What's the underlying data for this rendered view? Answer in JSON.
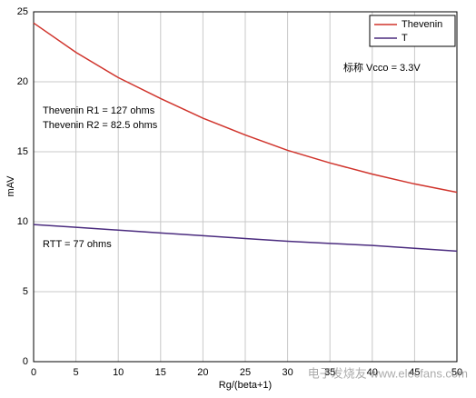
{
  "chart_data": {
    "type": "line",
    "x_label": "Rg/(beta+1)",
    "y_label": "mAV",
    "x": [
      0,
      5,
      10,
      15,
      20,
      25,
      30,
      35,
      40,
      45,
      50
    ],
    "series": [
      {
        "name": "Thevenin",
        "color": "#d0342c",
        "values": [
          24.2,
          22.1,
          20.3,
          18.8,
          17.4,
          16.2,
          15.1,
          14.2,
          13.4,
          12.7,
          12.1
        ]
      },
      {
        "name": "T",
        "color": "#4b2c7f",
        "values": [
          9.8,
          9.6,
          9.4,
          9.2,
          9.0,
          8.8,
          8.6,
          8.45,
          8.3,
          8.1,
          7.9
        ]
      }
    ],
    "xlim": [
      0,
      50
    ],
    "xticks": [
      0,
      5,
      10,
      15,
      20,
      25,
      30,
      35,
      40,
      45,
      50
    ],
    "ylim": [
      0,
      25
    ],
    "yticks": [
      0,
      5,
      10,
      15,
      20,
      25
    ],
    "grid": true,
    "legend": "upper-right",
    "annotations": [
      "标称 Vcco = 3.3V",
      "Thevenin R1 = 127 ohms",
      "Thevenin R2 = 82.5 ohms",
      "RTT = 77 ohms"
    ],
    "watermark": "电子发烧友 www.elecfans.com"
  }
}
